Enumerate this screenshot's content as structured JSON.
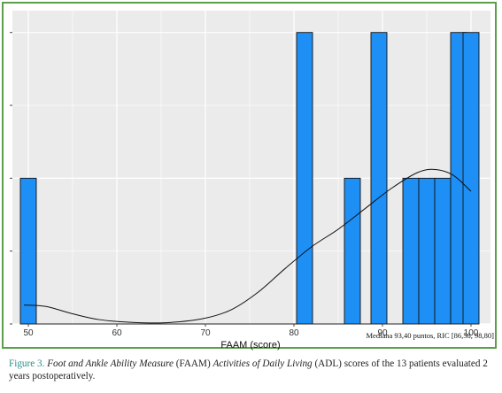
{
  "chart_data": {
    "type": "bar",
    "xlabel": "FAAM (score)",
    "x_ticks": [
      50,
      60,
      70,
      80,
      90,
      100
    ],
    "xlim": [
      48.2,
      102.2
    ],
    "ylim": [
      0,
      2.15
    ],
    "bin_width": 1.8,
    "bars": [
      {
        "x": 50,
        "count": 1
      },
      {
        "x": 81.2,
        "count": 2
      },
      {
        "x": 86.6,
        "count": 1
      },
      {
        "x": 89.6,
        "count": 2
      },
      {
        "x": 93.2,
        "count": 1
      },
      {
        "x": 95,
        "count": 1
      },
      {
        "x": 96.8,
        "count": 1
      },
      {
        "x": 98.6,
        "count": 2
      },
      {
        "x": 100,
        "count": 2
      }
    ],
    "density_curve": [
      {
        "x": 49.5,
        "y": 0.13
      },
      {
        "x": 52,
        "y": 0.12
      },
      {
        "x": 55,
        "y": 0.07
      },
      {
        "x": 58,
        "y": 0.03
      },
      {
        "x": 62,
        "y": 0.01
      },
      {
        "x": 66,
        "y": 0.01
      },
      {
        "x": 70,
        "y": 0.04
      },
      {
        "x": 73,
        "y": 0.1
      },
      {
        "x": 76,
        "y": 0.22
      },
      {
        "x": 79,
        "y": 0.38
      },
      {
        "x": 82,
        "y": 0.53
      },
      {
        "x": 85,
        "y": 0.65
      },
      {
        "x": 88,
        "y": 0.79
      },
      {
        "x": 91,
        "y": 0.93
      },
      {
        "x": 94,
        "y": 1.04
      },
      {
        "x": 96,
        "y": 1.06
      },
      {
        "x": 98,
        "y": 1.02
      },
      {
        "x": 100,
        "y": 0.91
      }
    ],
    "grid": true
  },
  "stats_note": "Mediana 93,40 puntos, RIC [86,58, 98,80]",
  "caption": {
    "label": "Figure 3.",
    "title_italic_1": "Foot and Ankle Ability Measure",
    "abbr_1": "(FAAM)",
    "title_italic_2": "Activities of Daily Living",
    "abbr_2": "(ADL)",
    "rest": "scores of the 13 patients evaluated 2 years postoperatively."
  },
  "colors": {
    "bar_fill": "#1e8ff5",
    "bar_stroke": "#111111",
    "panel_bg": "#ebebeb",
    "grid": "#ffffff",
    "frame": "#5aa04a",
    "caption_label": "#2a8f8a"
  }
}
